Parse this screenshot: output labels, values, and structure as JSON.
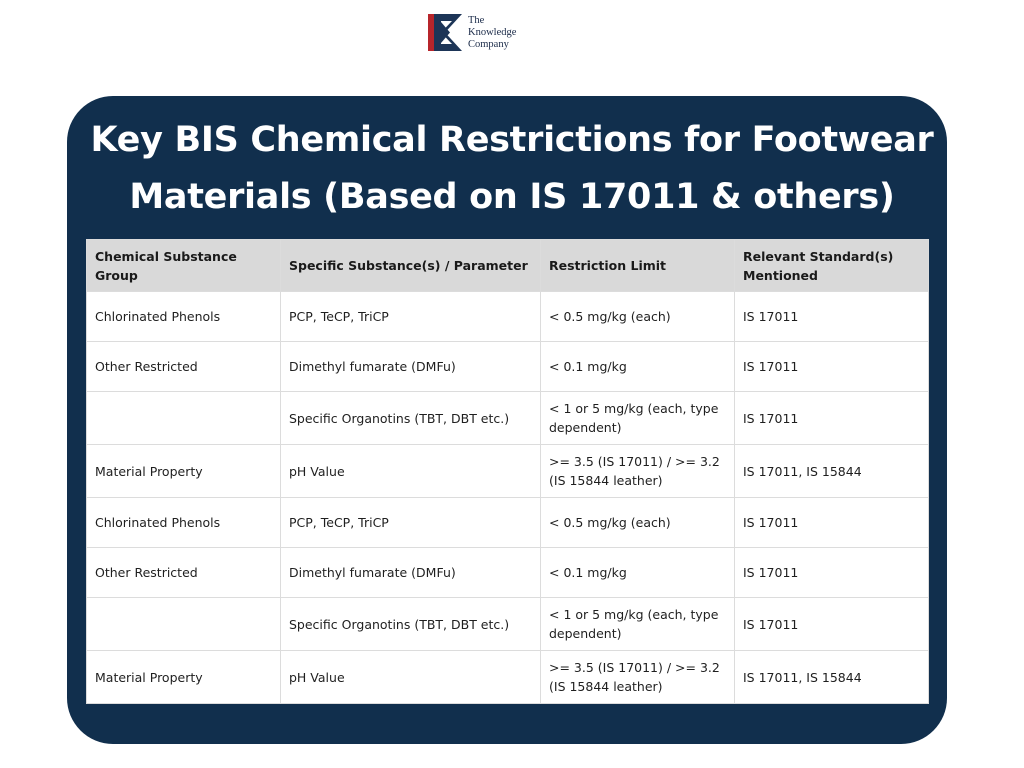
{
  "logo": {
    "line1": "The",
    "line2": "Knowledge",
    "line3": "Company",
    "colors": {
      "navy": "#1d3557",
      "red": "#b7252b"
    }
  },
  "title": {
    "line1": "Key BIS Chemical Restrictions for Footwear",
    "line2": "Materials (Based on IS 17011 & others)"
  },
  "colors": {
    "card_background": "#112f4d",
    "header_background": "#d9d9d9"
  },
  "table": {
    "headers": [
      "Chemical Substance Group",
      "Specific Substance(s) / Parameter",
      "Restriction Limit",
      "Relevant Standard(s) Mentioned"
    ],
    "rows": [
      [
        "Chlorinated Phenols",
        "PCP, TeCP, TriCP",
        "< 0.5 mg/kg (each)",
        "IS 17011"
      ],
      [
        "Other Restricted",
        "Dimethyl fumarate (DMFu)",
        "< 0.1 mg/kg",
        "IS 17011"
      ],
      [
        "",
        "Specific Organotins (TBT, DBT etc.)",
        "< 1 or 5 mg/kg (each, type dependent)",
        "IS 17011"
      ],
      [
        "Material Property",
        "pH Value",
        ">= 3.5 (IS 17011) / >= 3.2 (IS 15844 leather)",
        "IS 17011, IS 15844"
      ],
      [
        "Chlorinated Phenols",
        "PCP, TeCP, TriCP",
        "< 0.5 mg/kg (each)",
        "IS 17011"
      ],
      [
        "Other Restricted",
        "Dimethyl fumarate (DMFu)",
        "< 0.1 mg/kg",
        "IS 17011"
      ],
      [
        "",
        "Specific Organotins (TBT, DBT etc.)",
        "< 1 or 5 mg/kg (each, type dependent)",
        "IS 17011"
      ],
      [
        "Material Property",
        "pH Value",
        ">= 3.5 (IS 17011) / >= 3.2 (IS 15844 leather)",
        "IS 17011, IS 15844"
      ]
    ]
  }
}
